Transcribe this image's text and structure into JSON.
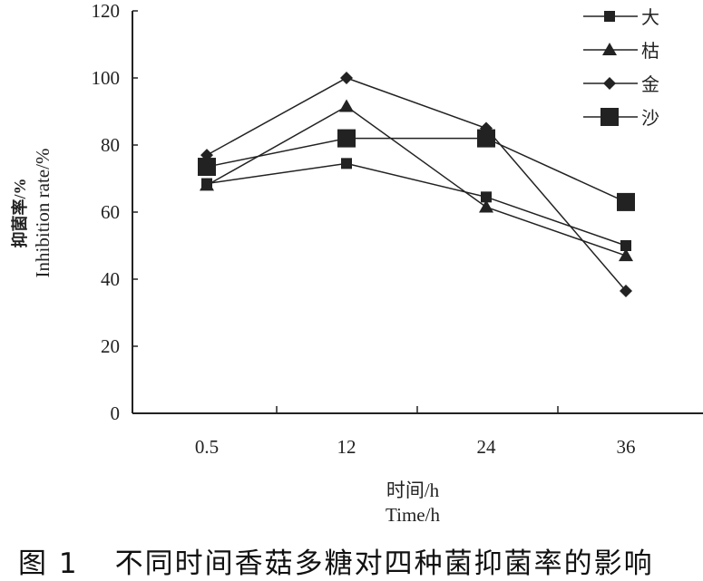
{
  "chart_data": {
    "type": "line",
    "categories": [
      "0.5",
      "12",
      "24",
      "36"
    ],
    "xlabel_cn": "时间/h",
    "xlabel": "Time/h",
    "ylabel_cn": "抑菌率/%",
    "ylabel": "Inhibition rate/%",
    "ylim": [
      0,
      120
    ],
    "yticks": [
      "0",
      "20",
      "40",
      "60",
      "80",
      "100",
      "120"
    ],
    "grid": false,
    "legend_position": "top-right",
    "series": [
      {
        "name": "大",
        "marker": "small-square",
        "values": [
          68.5,
          74.5,
          64.5,
          50
        ]
      },
      {
        "name": "枯",
        "marker": "triangle",
        "values": [
          68,
          91.5,
          61.5,
          47
        ]
      },
      {
        "name": "金",
        "marker": "diamond",
        "values": [
          77,
          100,
          85,
          36.5
        ]
      },
      {
        "name": "沙",
        "marker": "large-square",
        "values": [
          73.5,
          82,
          82,
          63
        ]
      }
    ],
    "line_color": "#222222"
  },
  "caption": {
    "number": "图 1",
    "text": "不同时间香菇多糖对四种菌抑菌率的影响"
  }
}
